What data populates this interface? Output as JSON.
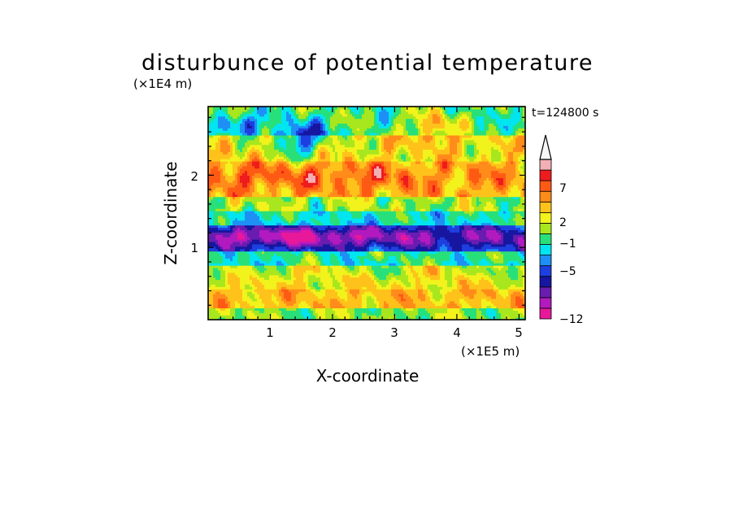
{
  "chart_data": {
    "type": "heatmap",
    "title": "disturbunce of potential temperature",
    "xlabel": "X-coordinate",
    "ylabel": "Z-coordinate",
    "x_unit": "(×1E5 m)",
    "y_unit": "(×1E4 m)",
    "time_label": "t=124800 s",
    "xlim": [
      0,
      5.1
    ],
    "ylim": [
      0,
      2.95
    ],
    "x_ticks": [
      "1",
      "2",
      "3",
      "4",
      "5"
    ],
    "y_ticks": [
      "1",
      "2"
    ],
    "colorbar": {
      "labels": [
        "7",
        "2",
        "−1",
        "−5",
        "−12"
      ],
      "levels": [
        -12,
        -10,
        -8,
        -7,
        -5,
        -4,
        -3,
        -1,
        0,
        1,
        2,
        3,
        5,
        7,
        9,
        11
      ],
      "colors": [
        "#e8189a",
        "#b21abf",
        "#6a1cb0",
        "#1616a0",
        "#1e3fe0",
        "#1e8ff5",
        "#00e5f0",
        "#28e07a",
        "#a8e61e",
        "#f2f21c",
        "#ffc21a",
        "#ff8c1a",
        "#ff5a14",
        "#ee1c1c",
        "#f2b0b4"
      ],
      "extend": "max"
    },
    "colors": {
      "frame": "#000000",
      "background": "#ffffff"
    }
  }
}
